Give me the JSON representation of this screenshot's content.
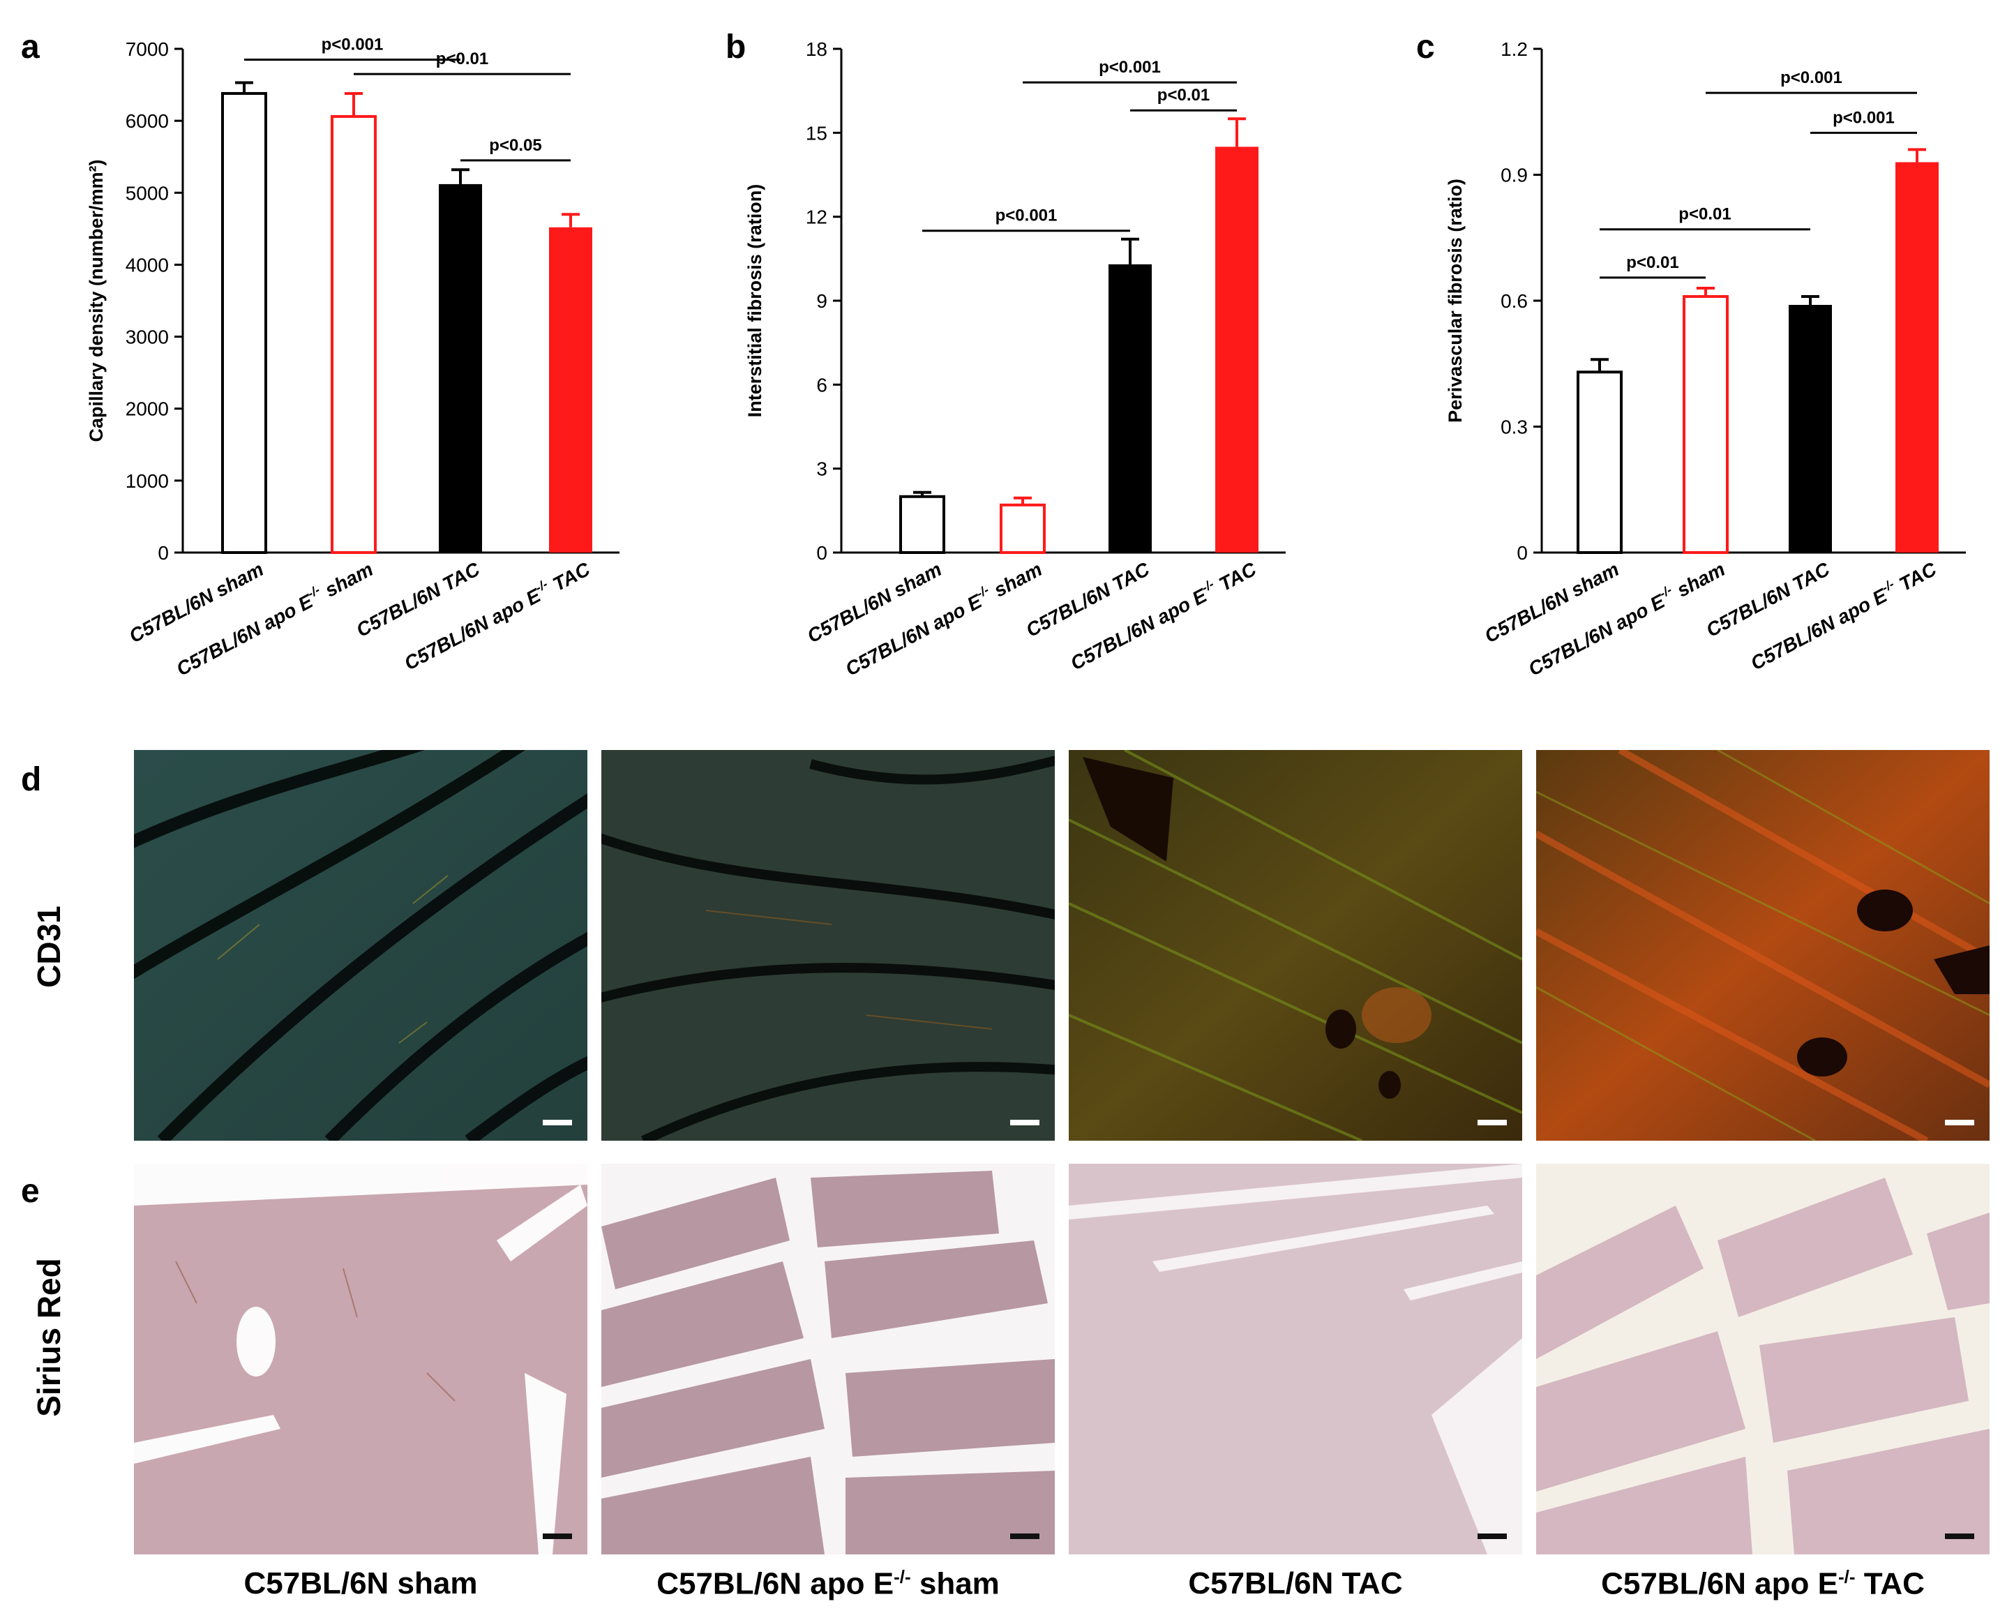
{
  "panels": {
    "a": "a",
    "b": "b",
    "c": "c",
    "d": "d",
    "e": "e"
  },
  "chart_data": [
    {
      "id": "a",
      "type": "bar",
      "categories": [
        "C57BL/6N sham",
        "C57BL/6N apo E-/- sham",
        "C57BL/6N TAC",
        "C57BL/6N apo E-/- TAC"
      ],
      "values": [
        6380,
        6060,
        5120,
        4520
      ],
      "errors": [
        150,
        320,
        200,
        180
      ],
      "ylabel": "Capillary density (number/mm²)",
      "ylim": [
        0,
        7000
      ],
      "yticks": [
        0,
        1000,
        2000,
        3000,
        4000,
        5000,
        6000,
        7000
      ],
      "ytick_labels": [
        "0",
        "1000",
        "2000",
        "3000",
        "4000",
        "5000",
        "6000",
        "7000"
      ],
      "styles": [
        "open-black",
        "open-red",
        "solid-black",
        "solid-red"
      ],
      "significance": [
        {
          "from": 0,
          "to": 2,
          "level": 6850,
          "label": "p<0.001"
        },
        {
          "from": 1,
          "to": 3,
          "level": 6650,
          "label": "p<0.01"
        },
        {
          "from": 2,
          "to": 3,
          "level": 5450,
          "label": "p<0.05"
        }
      ]
    },
    {
      "id": "b",
      "type": "bar",
      "categories": [
        "C57BL/6N sham",
        "C57BL/6N apo E-/- sham",
        "C57BL/6N TAC",
        "C57BL/6N apo E-/- TAC"
      ],
      "values": [
        2.0,
        1.7,
        10.3,
        14.5
      ],
      "errors": [
        0.15,
        0.25,
        0.9,
        1.0
      ],
      "ylabel": "Interstitial fibrosis (ration)",
      "ylim": [
        0,
        18
      ],
      "yticks": [
        0,
        3,
        6,
        9,
        12,
        15,
        18
      ],
      "ytick_labels": [
        "0",
        "3",
        "6",
        "9",
        "12",
        "15",
        "18"
      ],
      "styles": [
        "open-black",
        "open-red",
        "solid-black",
        "solid-red"
      ],
      "significance": [
        {
          "from": 1,
          "to": 3,
          "level": 16.8,
          "label": "p<0.001"
        },
        {
          "from": 2,
          "to": 3,
          "level": 15.8,
          "label": "p<0.01"
        },
        {
          "from": 0,
          "to": 2,
          "level": 11.5,
          "label": "p<0.001"
        }
      ]
    },
    {
      "id": "c",
      "type": "bar",
      "categories": [
        "C57BL/6N sham",
        "C57BL/6N apo E-/- sham",
        "C57BL/6N TAC",
        "C57BL/6N apo E-/- TAC"
      ],
      "values": [
        0.43,
        0.61,
        0.59,
        0.93
      ],
      "errors": [
        0.03,
        0.02,
        0.02,
        0.03
      ],
      "ylabel": "Perivascular fibrosis (ratio)",
      "ylim": [
        0,
        1.2
      ],
      "yticks": [
        0,
        0.3,
        0.6,
        0.9,
        1.2
      ],
      "ytick_labels": [
        "0",
        "0.3",
        "0.6",
        "0.9",
        "1.2"
      ],
      "styles": [
        "open-black",
        "open-red",
        "solid-black",
        "solid-red"
      ],
      "significance": [
        {
          "from": 1,
          "to": 3,
          "level": 1.095,
          "label": "p<0.001"
        },
        {
          "from": 2,
          "to": 3,
          "level": 1.0,
          "label": "p<0.001"
        },
        {
          "from": 0,
          "to": 2,
          "level": 0.77,
          "label": "p<0.01"
        },
        {
          "from": 0,
          "to": 1,
          "level": 0.655,
          "label": "p<0.01"
        }
      ]
    }
  ],
  "rows": {
    "cd31": "CD31",
    "sirius": "Sirius Red"
  },
  "groups": [
    {
      "base": "C57BL/6N sham",
      "sup": "",
      "tail": ""
    },
    {
      "base": "C57BL/6N apo E",
      "sup": "-/-",
      "tail": " sham"
    },
    {
      "base": "C57BL/6N TAC",
      "sup": "",
      "tail": ""
    },
    {
      "base": "C57BL/6N apo E",
      "sup": "-/-",
      "tail": " TAC"
    }
  ],
  "colors": {
    "black": "#000000",
    "red": "#ff1a1a",
    "white": "#ffffff"
  }
}
